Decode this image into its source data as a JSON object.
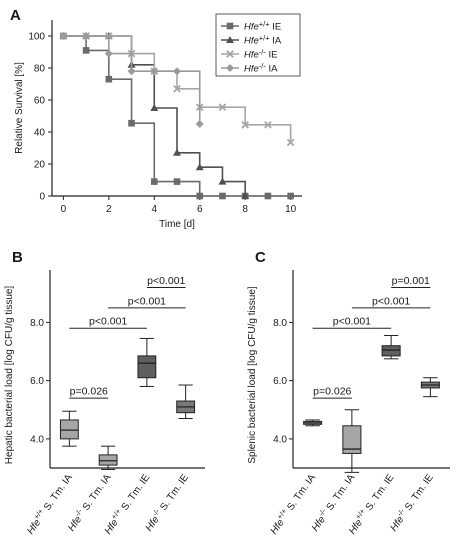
{
  "chart_data": [
    {
      "panel": "A",
      "type": "line",
      "xlabel": "Time [d]",
      "ylabel": "Relative Survival [%]",
      "xlim": [
        -0.5,
        10.5
      ],
      "ylim": [
        0,
        110
      ],
      "xticks": [
        "0",
        "2",
        "4",
        "6",
        "8",
        "10"
      ],
      "yticks": [
        "0",
        "20",
        "40",
        "60",
        "80",
        "100"
      ],
      "legend_placement": "top-right",
      "series": [
        {
          "name_prefix": "Hfe",
          "name_sup": "+/+",
          "name_suffix": "IE",
          "marker": "square",
          "color": "#6b6b6b",
          "x": [
            0,
            1,
            2,
            3,
            4,
            5,
            6,
            7,
            8,
            9,
            10
          ],
          "y": [
            100,
            91,
            73,
            45.5,
            9,
            9,
            0,
            0,
            0,
            0,
            0
          ]
        },
        {
          "name_prefix": "Hfe",
          "name_sup": "+/+",
          "name_suffix": "IA",
          "marker": "triangle",
          "color": "#505050",
          "x": [
            0,
            1,
            2,
            3,
            4,
            5,
            6,
            7,
            8
          ],
          "y": [
            100,
            100,
            100,
            82,
            55,
            27,
            18,
            9,
            0
          ]
        },
        {
          "name_prefix": "Hfe",
          "name_sup": "-/-",
          "name_suffix": "IE",
          "marker": "x",
          "color": "#a6a6a6",
          "x": [
            0,
            1,
            2,
            3,
            4,
            5,
            6,
            7,
            8,
            9,
            10
          ],
          "y": [
            100,
            100,
            100,
            89,
            78,
            67,
            55.5,
            55.5,
            44.5,
            44.5,
            33.5
          ]
        },
        {
          "name_prefix": "Hfe",
          "name_sup": "-/-",
          "name_suffix": "IA",
          "marker": "diamond",
          "color": "#9a9a9a",
          "x": [
            0,
            1,
            2,
            3,
            4,
            5,
            6
          ],
          "y": [
            100,
            100,
            89,
            78,
            78,
            78,
            45
          ]
        }
      ]
    },
    {
      "panel": "B",
      "type": "box",
      "ylabel": "Hepatic bacterial load [log CFU/g tissue]",
      "ylim": [
        3.0,
        9.8
      ],
      "yticks": [
        "4.0",
        "6.0",
        "8.0"
      ],
      "categories": [
        {
          "prefix": "Hfe",
          "sup": "+/+",
          "suffix": " S. Tm. IA",
          "color": "#a6a6a6"
        },
        {
          "prefix": "Hfe",
          "sup": "-/-",
          "suffix": " S. Tm. IA",
          "color": "#a6a6a6"
        },
        {
          "prefix": "Hfe",
          "sup": "+/+",
          "suffix": " S. Tm. IE",
          "color": "#5f5f5f"
        },
        {
          "prefix": "Hfe",
          "sup": "-/-",
          "suffix": " S. Tm. IE",
          "color": "#787878"
        }
      ],
      "boxes": [
        {
          "min": 3.75,
          "q1": 4.0,
          "median": 4.3,
          "q3": 4.65,
          "max": 4.95
        },
        {
          "min": 2.95,
          "q1": 3.1,
          "median": 3.25,
          "q3": 3.45,
          "max": 3.75
        },
        {
          "min": 5.8,
          "q1": 6.1,
          "median": 6.6,
          "q3": 6.85,
          "max": 7.45
        },
        {
          "min": 4.7,
          "q1": 4.9,
          "median": 5.1,
          "q3": 5.3,
          "max": 5.85
        }
      ],
      "comparisons": [
        {
          "from": 0,
          "to": 1,
          "label": "p=0.026",
          "level": 5.4
        },
        {
          "from": 0,
          "to": 2,
          "label": "p<0.001",
          "level": 7.8
        },
        {
          "from": 1,
          "to": 3,
          "label": "p<0.001",
          "level": 8.5
        },
        {
          "from": 2,
          "to": 3,
          "label": "p<0.001",
          "level": 9.2
        }
      ]
    },
    {
      "panel": "C",
      "type": "box",
      "ylabel": "Splenic bacterial load [log CFU/g tissue]",
      "ylim": [
        3.0,
        9.8
      ],
      "yticks": [
        "4.0",
        "6.0",
        "8.0"
      ],
      "categories": [
        {
          "prefix": "Hfe",
          "sup": "+/+",
          "suffix": " S. Tm. IA",
          "color": "#a6a6a6"
        },
        {
          "prefix": "Hfe",
          "sup": "-/-",
          "suffix": " S. Tm. IA",
          "color": "#a6a6a6"
        },
        {
          "prefix": "Hfe",
          "sup": "+/+",
          "suffix": " S. Tm. IE",
          "color": "#5f5f5f"
        },
        {
          "prefix": "Hfe",
          "sup": "-/-",
          "suffix": " S. Tm. IE",
          "color": "#787878"
        }
      ],
      "boxes": [
        {
          "min": 4.45,
          "q1": 4.5,
          "median": 4.55,
          "q3": 4.6,
          "max": 4.65
        },
        {
          "min": 2.85,
          "q1": 3.5,
          "median": 3.65,
          "q3": 4.45,
          "max": 5.0
        },
        {
          "min": 6.75,
          "q1": 6.85,
          "median": 7.05,
          "q3": 7.2,
          "max": 7.55
        },
        {
          "min": 5.45,
          "q1": 5.75,
          "median": 5.85,
          "q3": 5.95,
          "max": 6.1
        }
      ],
      "comparisons": [
        {
          "from": 0,
          "to": 1,
          "label": "p=0.026",
          "level": 5.4
        },
        {
          "from": 0,
          "to": 2,
          "label": "p<0.001",
          "level": 7.8
        },
        {
          "from": 1,
          "to": 3,
          "label": "p<0.001",
          "level": 8.5
        },
        {
          "from": 2,
          "to": 3,
          "label": "p=0.001",
          "level": 9.2
        }
      ]
    }
  ]
}
